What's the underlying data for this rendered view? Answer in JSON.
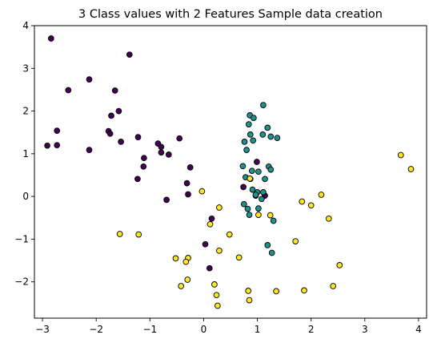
{
  "chart_data": {
    "type": "scatter",
    "title": "3 Class values with 2 Features Sample data creation",
    "xlabel": "",
    "ylabel": "",
    "xlim": [
      -3.15,
      4.15
    ],
    "ylim": [
      -2.85,
      4.0
    ],
    "x_ticks": [
      -3,
      -2,
      -1,
      0,
      1,
      2,
      3,
      4
    ],
    "y_ticks": [
      -2,
      -1,
      0,
      1,
      2,
      3,
      4
    ],
    "x_tick_labels": [
      "−3",
      "−2",
      "−1",
      "0",
      "1",
      "2",
      "3",
      "4"
    ],
    "y_tick_labels": [
      "−2",
      "−1",
      "0",
      "1",
      "2",
      "3",
      "4"
    ],
    "grid": false,
    "legend": "none",
    "series": [
      {
        "color": "#440154",
        "x": [
          -2.84,
          -1.38,
          -2.52,
          -2.13,
          -1.65,
          -1.72,
          -1.58,
          -2.73,
          -1.77,
          -1.74,
          -1.22,
          -1.54,
          -2.91,
          -2.73,
          -2.13,
          -0.85,
          -0.79,
          -1.11,
          -0.79,
          -0.65,
          -0.45,
          -0.25,
          -1.12,
          -1.23,
          -0.31,
          -0.69,
          -0.29,
          0.15,
          0.74,
          0.11,
          0.03,
          0.99,
          0.97,
          1.14
        ],
        "y": [
          3.7,
          3.32,
          2.49,
          2.74,
          2.48,
          1.89,
          2.0,
          1.54,
          1.53,
          1.47,
          1.39,
          1.28,
          1.19,
          1.2,
          1.09,
          1.24,
          1.16,
          0.9,
          1.03,
          0.98,
          1.36,
          0.68,
          0.7,
          0.41,
          0.31,
          -0.08,
          0.05,
          -0.52,
          0.22,
          -1.68,
          -1.12,
          0.81,
          0.02,
          0.02
        ]
      },
      {
        "color": "#21918c",
        "x": [
          0.86,
          1.11,
          0.93,
          0.84,
          0.87,
          1.19,
          1.25,
          1.37,
          1.1,
          0.92,
          0.76,
          0.8,
          0.73,
          1.21,
          1.25,
          0.9,
          1.02,
          1.14,
          0.78,
          0.87,
          0.91,
          1.11,
          1.0,
          0.97,
          1.08,
          0.75,
          0.82,
          1.02,
          0.85,
          1.3,
          1.19,
          1.27
        ],
        "y": [
          1.9,
          2.14,
          1.84,
          1.69,
          1.45,
          1.61,
          1.4,
          1.37,
          1.45,
          1.31,
          1.28,
          1.09,
          0.71,
          0.7,
          0.63,
          0.6,
          0.58,
          0.41,
          0.45,
          0.41,
          0.16,
          0.1,
          0.1,
          0.04,
          -0.06,
          -0.18,
          -0.29,
          -0.28,
          -0.43,
          -0.57,
          -1.14,
          -1.32
        ]
      },
      {
        "color": "#fde725",
        "x": [
          3.67,
          3.86,
          2.19,
          2.0,
          1.83,
          2.33,
          1.24,
          1.71,
          -0.03,
          0.29,
          0.12,
          0.48,
          0.29,
          -0.52,
          -1.56,
          -1.21,
          -0.29,
          -0.33,
          -0.3,
          0.66,
          0.2,
          -0.42,
          0.83,
          1.35,
          0.24,
          1.87,
          2.41,
          2.53,
          0.85,
          0.26,
          0.86,
          1.02
        ],
        "y": [
          0.97,
          0.64,
          0.04,
          -0.21,
          -0.12,
          -0.52,
          -0.44,
          -1.05,
          0.12,
          -0.26,
          -0.65,
          -0.89,
          -1.27,
          -1.45,
          -0.88,
          -0.89,
          -1.44,
          -1.53,
          -1.95,
          -1.43,
          -2.06,
          -2.1,
          -2.21,
          -2.22,
          -2.31,
          -2.2,
          -2.1,
          -1.61,
          -2.43,
          -2.56,
          0.42,
          -0.43
        ]
      }
    ]
  }
}
